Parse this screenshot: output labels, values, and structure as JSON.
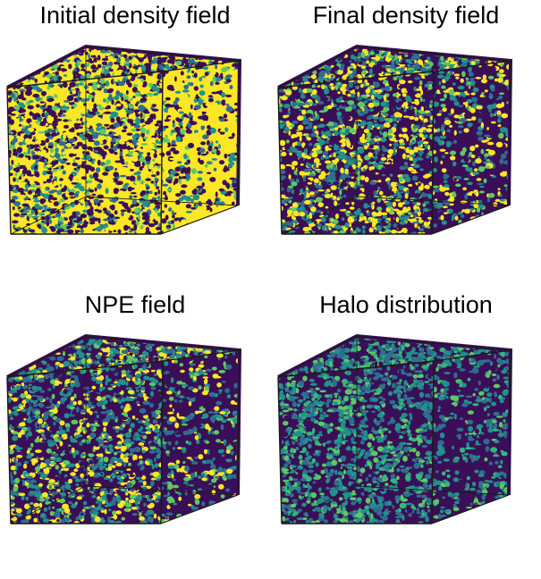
{
  "panels": [
    {
      "title": "Initial density field",
      "style": "initial"
    },
    {
      "title": "Final density field",
      "style": "final"
    },
    {
      "title": "NPE field",
      "style": "npe"
    },
    {
      "title": "Halo distribution",
      "style": "halo"
    }
  ],
  "colors": {
    "background": "#ffffff",
    "dark": "#3b0f58",
    "mid": "#2f6d8e",
    "teal": "#21918c",
    "green": "#5ec962",
    "yellow": "#fde725",
    "edge": "#1a1a1a"
  }
}
